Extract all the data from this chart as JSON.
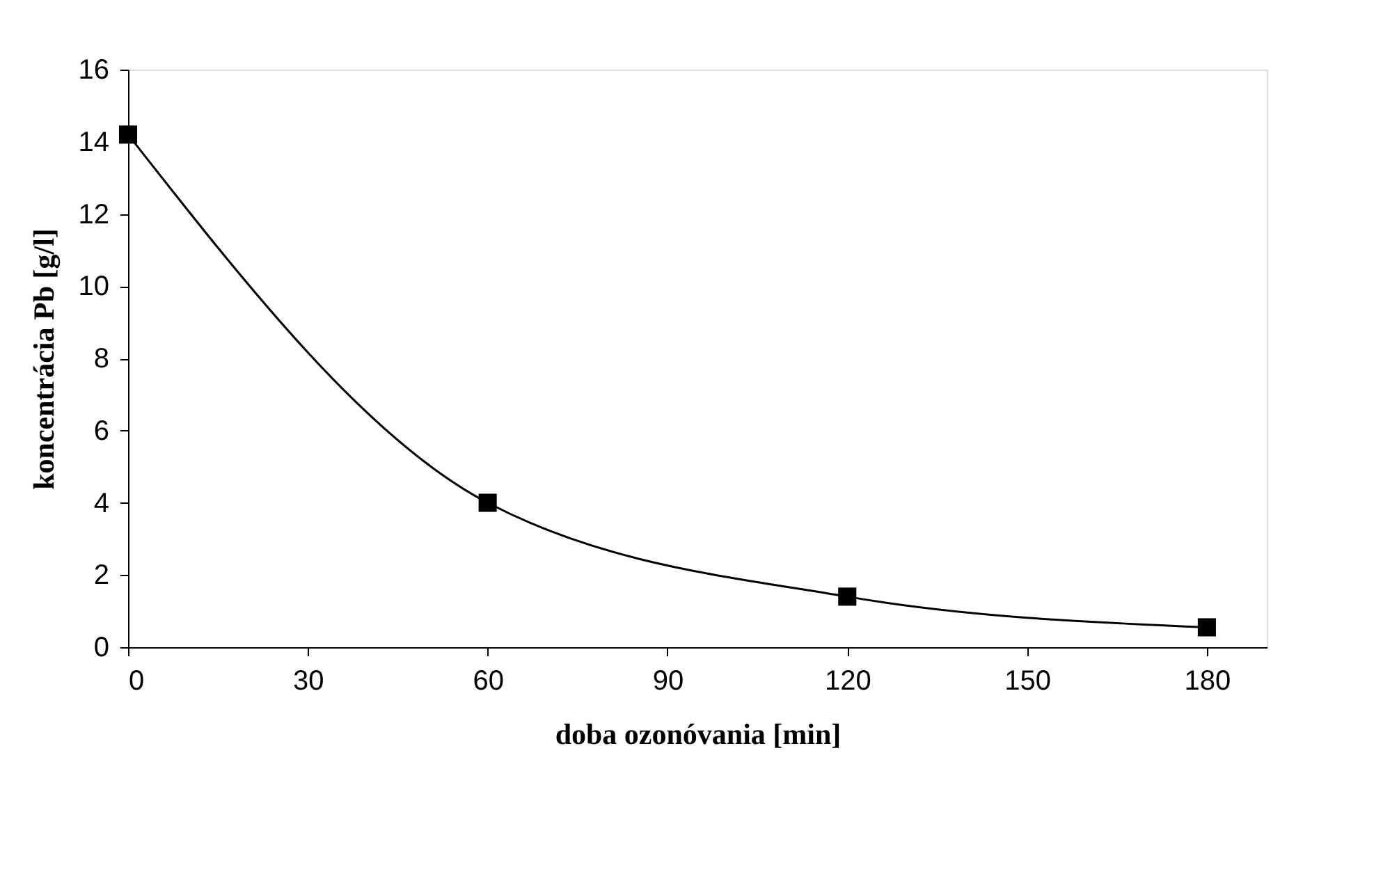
{
  "chart_data": {
    "type": "line",
    "xlabel": "doba ozonóvania [min]",
    "ylabel": "koncentrácia Pb [g/l]",
    "x": [
      0,
      60,
      120,
      180
    ],
    "series": [
      {
        "color": "#000000",
        "values": [
          14.2,
          4.0,
          1.4,
          0.55
        ]
      }
    ],
    "xlim": [
      0,
      190
    ],
    "xticks": [
      0,
      30,
      60,
      90,
      120,
      150,
      180
    ],
    "ylim": [
      0,
      16
    ],
    "yticks": [
      0,
      2,
      4,
      6,
      8,
      10,
      12,
      14,
      16
    ],
    "marker": "square",
    "line_style": "solid",
    "grid": false
  }
}
